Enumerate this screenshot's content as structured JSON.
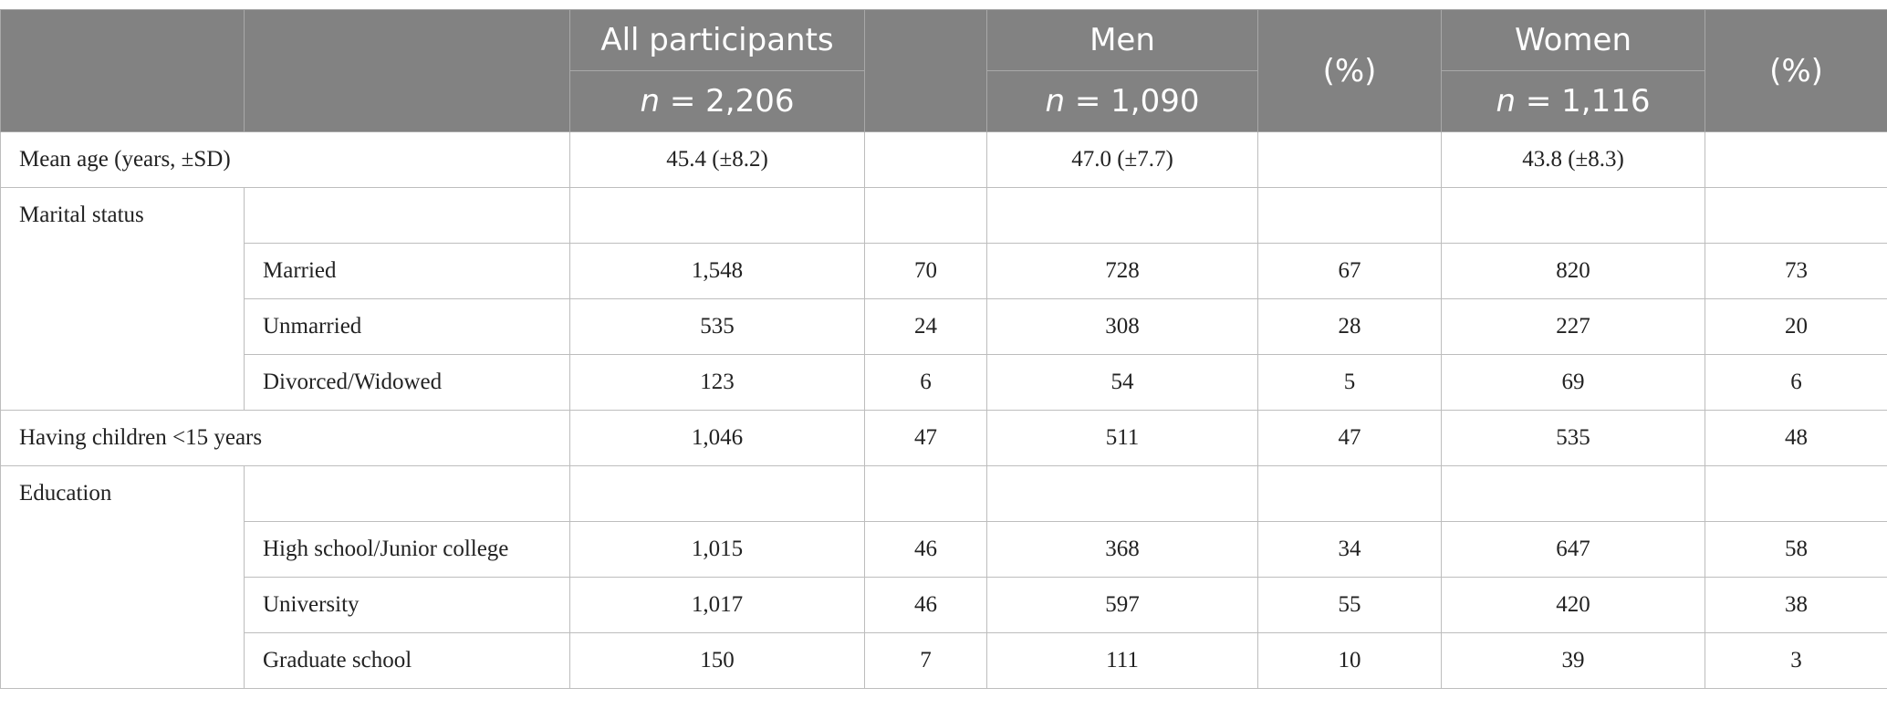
{
  "header": {
    "all_label": "All participants",
    "men_label": "Men",
    "women_label": "Women",
    "pct_label": "(%)",
    "n_symbol": "n",
    "all_n": "= 2,206",
    "men_n": "= 1,090",
    "women_n": "= 1,116"
  },
  "rows": {
    "mean_age": {
      "label": "Mean age (years, ±SD)",
      "all": "45.4 (±8.2)",
      "men": "47.0 (±7.7)",
      "women": "43.8 (±8.3)"
    },
    "marital_status": {
      "label": "Marital status",
      "items": [
        {
          "label": "Married",
          "all": "1,548",
          "all_pct": "70",
          "men": "728",
          "men_pct": "67",
          "women": "820",
          "women_pct": "73"
        },
        {
          "label": "Unmarried",
          "all": "535",
          "all_pct": "24",
          "men": "308",
          "men_pct": "28",
          "women": "227",
          "women_pct": "20"
        },
        {
          "label": "Divorced/Widowed",
          "all": "123",
          "all_pct": "6",
          "men": "54",
          "men_pct": "5",
          "women": "69",
          "women_pct": "6"
        }
      ]
    },
    "children": {
      "label": "Having children <15 years",
      "all": "1,046",
      "all_pct": "47",
      "men": "511",
      "men_pct": "47",
      "women": "535",
      "women_pct": "48"
    },
    "education": {
      "label": "Education",
      "items": [
        {
          "label": "High school/Junior college",
          "all": "1,015",
          "all_pct": "46",
          "men": "368",
          "men_pct": "34",
          "women": "647",
          "women_pct": "58"
        },
        {
          "label": "University",
          "all": "1,017",
          "all_pct": "46",
          "men": "597",
          "men_pct": "55",
          "women": "420",
          "women_pct": "38"
        },
        {
          "label": "Graduate school",
          "all": "150",
          "all_pct": "7",
          "men": "111",
          "men_pct": "10",
          "women": "39",
          "women_pct": "3"
        }
      ]
    }
  }
}
